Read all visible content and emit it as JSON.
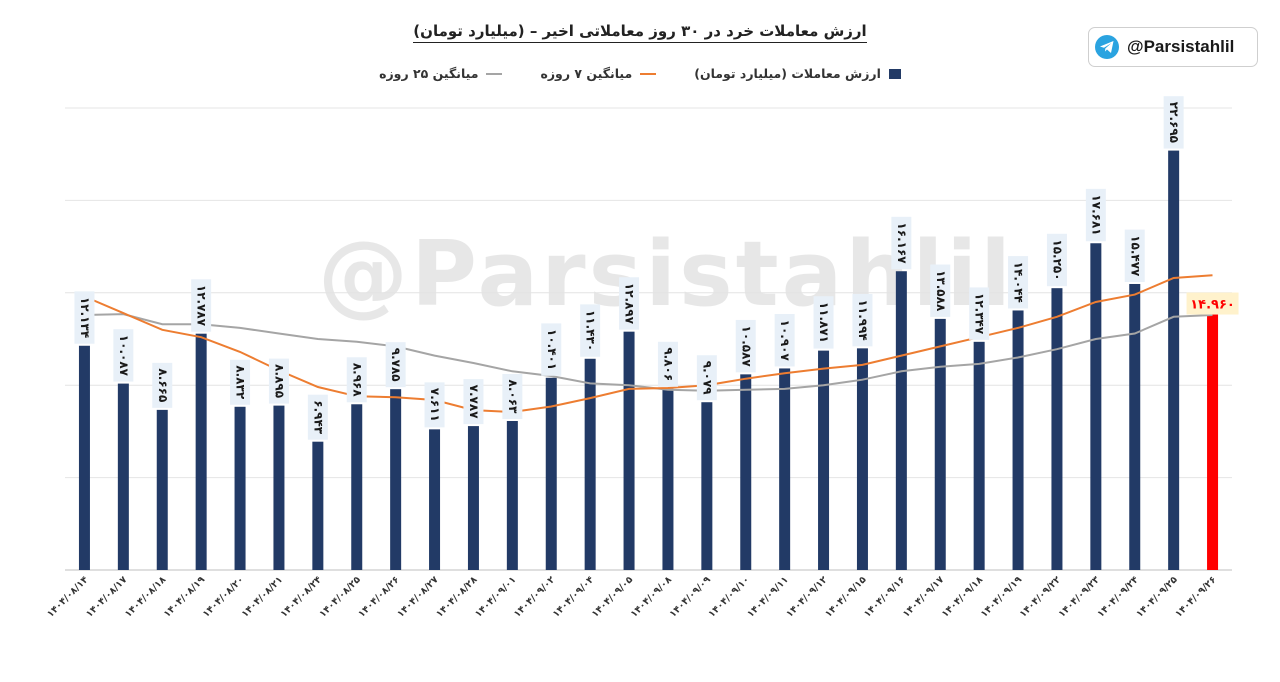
{
  "title": "ارزش معاملات خرد در ۳۰ روز معاملاتی اخیر – (میلیارد تومان)",
  "brand": {
    "handle": "@Parsistahlil",
    "icon": "telegram-icon"
  },
  "watermark": "@Parsistahlil",
  "legend": {
    "bars": "ارزش معاملات (میلیارد تومان)",
    "ma7": "میانگین ۷ روزه",
    "ma25": "میانگین ۲۵ روزه"
  },
  "colors": {
    "bar": "#223a66",
    "last_bar": "#ff0000",
    "ma7": "#ed7d31",
    "ma25": "#a5a5a5",
    "label_bg": "#e8f0f8"
  },
  "chart_data": {
    "type": "bar",
    "categories": [
      "۱۴۰۴/۰۸/۱۴",
      "۱۴۰۴/۰۸/۱۷",
      "۱۴۰۴/۰۸/۱۸",
      "۱۴۰۴/۰۸/۱۹",
      "۱۴۰۴/۰۸/۲۰",
      "۱۴۰۴/۰۸/۲۱",
      "۱۴۰۴/۰۸/۲۴",
      "۱۴۰۴/۰۸/۲۵",
      "۱۴۰۴/۰۸/۲۶",
      "۱۴۰۴/۰۸/۲۷",
      "۱۴۰۴/۰۸/۲۸",
      "۱۴۰۴/۰۹/۰۱",
      "۱۴۰۴/۰۹/۰۲",
      "۱۴۰۴/۰۹/۰۴",
      "۱۴۰۴/۰۹/۰۵",
      "۱۴۰۴/۰۹/۰۸",
      "۱۴۰۴/۰۹/۰۹",
      "۱۴۰۴/۰۹/۱۰",
      "۱۴۰۴/۰۹/۱۱",
      "۱۴۰۴/۰۹/۱۲",
      "۱۴۰۴/۰۹/۱۵",
      "۱۴۰۴/۰۹/۱۶",
      "۱۴۰۴/۰۹/۱۷",
      "۱۴۰۴/۰۹/۱۸",
      "۱۴۰۴/۰۹/۱۹",
      "۱۴۰۴/۰۹/۲۲",
      "۱۴۰۴/۰۹/۲۳",
      "۱۴۰۴/۰۹/۲۴",
      "۱۴۰۴/۰۹/۲۵",
      "۱۴۰۴/۰۹/۲۶"
    ],
    "series": [
      {
        "name": "ارزش معاملات (میلیارد تومان)",
        "kind": "bar",
        "values": [
          12.134,
          10.087,
          8.665,
          12.787,
          8.832,
          8.895,
          6.943,
          8.968,
          9.785,
          7.611,
          7.787,
          8.063,
          10.401,
          11.43,
          12.897,
          9.806,
          9.079,
          10.587,
          10.907,
          11.871,
          11.994,
          16.167,
          13.588,
          12.347,
          14.044,
          15.25,
          17.681,
          15.477,
          22.695,
          14.96
        ],
        "labels": [
          "۱۲.۱۳۴",
          "۱۰.۰۸۷",
          "۸.۶۶۵",
          "۱۲.۷۸۷",
          "۸.۸۳۲",
          "۸.۸۹۵",
          "۶.۹۴۳",
          "۸.۹۶۸",
          "۹.۷۸۵",
          "۷.۶۱۱",
          "۷.۷۸۷",
          "۸.۰۶۳",
          "۱۰.۴۰۱",
          "۱۱.۴۳۰",
          "۱۲.۸۹۷",
          "۹.۸۰۶",
          "۹.۰۷۹",
          "۱۰.۵۸۷",
          "۱۰.۹۰۷",
          "۱۱.۸۷۱",
          "۱۱.۹۹۴",
          "۱۶.۱۶۷",
          "۱۳.۵۸۸",
          "۱۲.۳۴۷",
          "۱۴.۰۴۴",
          "۱۵.۲۵۰",
          "۱۷.۶۸۱",
          "۱۵.۴۷۷",
          "۲۲.۶۹۵",
          "۱۴.۹۶۰"
        ]
      },
      {
        "name": "میانگین ۷ روزه",
        "kind": "line",
        "values": [
          14.8,
          13.9,
          13.0,
          12.6,
          11.8,
          10.8,
          9.9,
          9.4,
          9.35,
          9.2,
          8.65,
          8.55,
          8.85,
          9.3,
          9.8,
          9.85,
          10.0,
          10.35,
          10.65,
          10.9,
          11.1,
          11.6,
          12.1,
          12.6,
          13.1,
          13.7,
          14.5,
          14.9,
          15.8,
          15.95
        ]
      },
      {
        "name": "میانگین ۲۵ روزه",
        "kind": "line",
        "values": [
          13.8,
          13.85,
          13.3,
          13.3,
          13.1,
          12.8,
          12.5,
          12.35,
          12.1,
          11.6,
          11.2,
          10.75,
          10.5,
          10.1,
          10.0,
          9.75,
          9.7,
          9.75,
          9.8,
          10.0,
          10.3,
          10.75,
          11.0,
          11.15,
          11.5,
          11.95,
          12.5,
          12.8,
          13.7,
          13.8
        ]
      }
    ],
    "ylim": [
      0,
      25
    ],
    "grid": true,
    "legend_position": "top-center"
  }
}
